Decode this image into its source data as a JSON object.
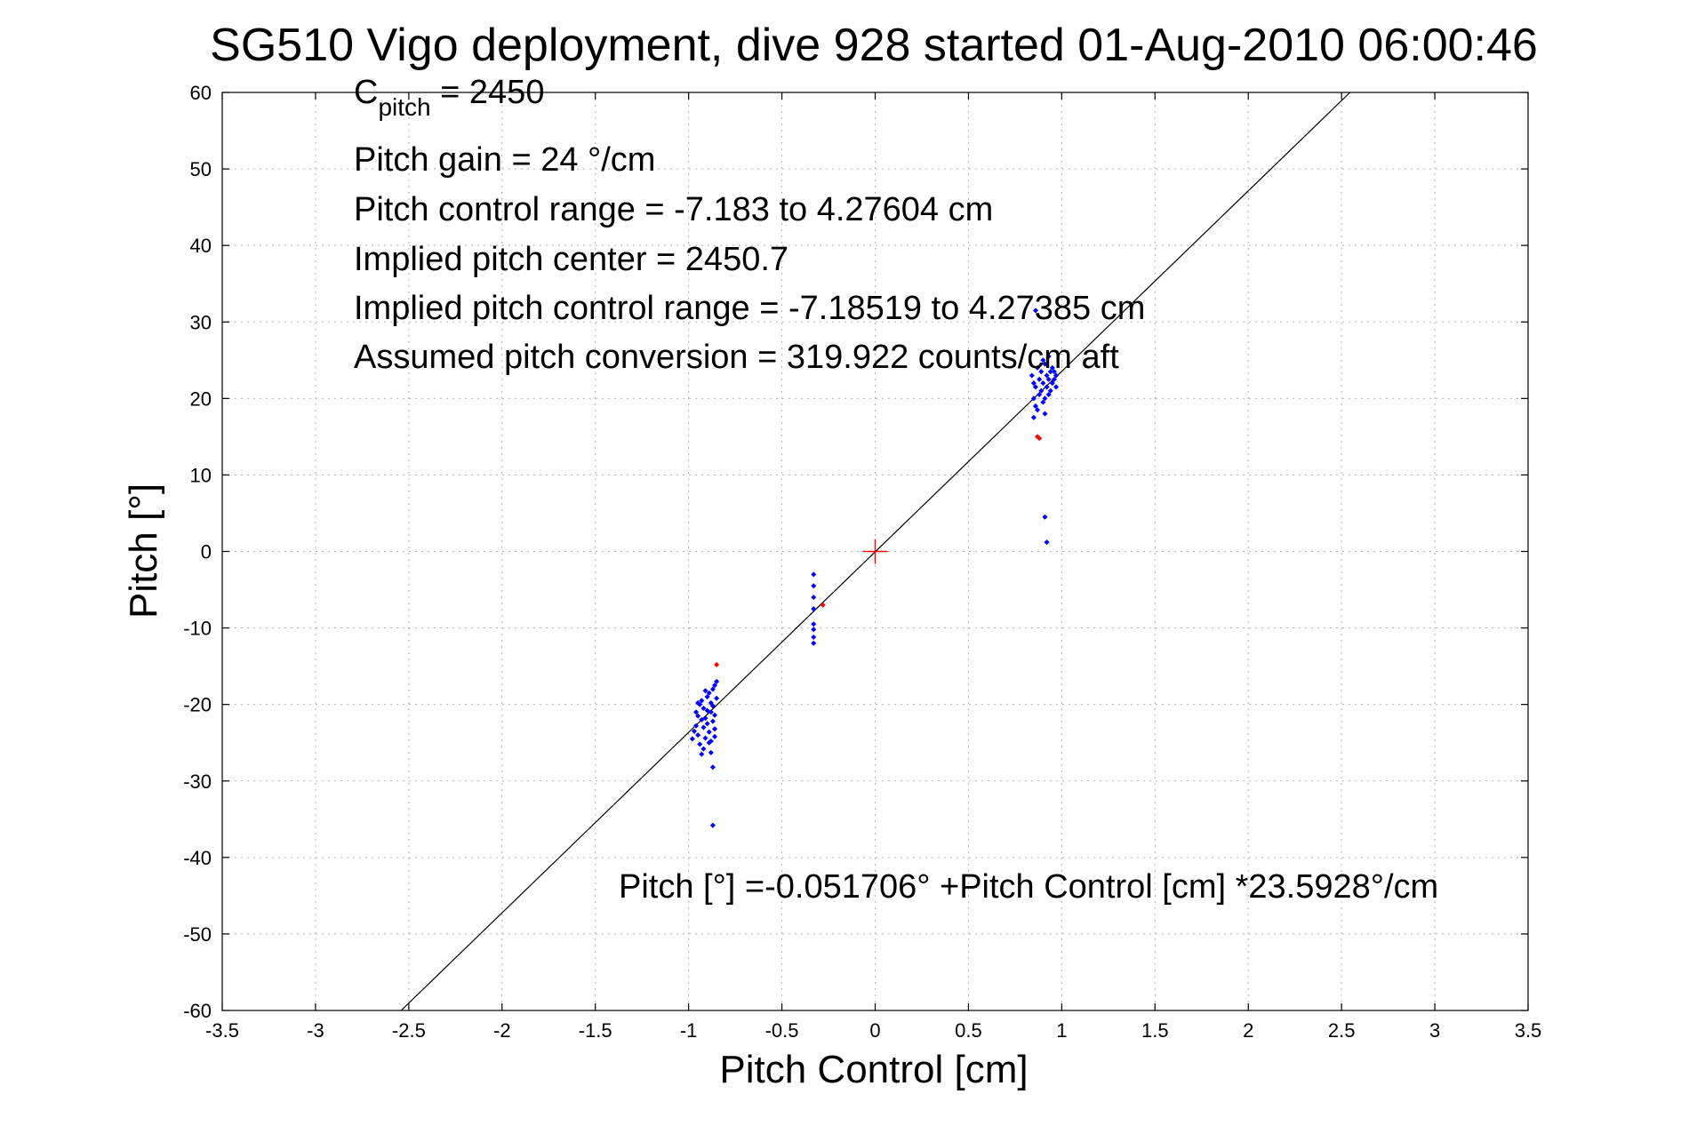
{
  "chart_data": {
    "type": "scatter",
    "title": "SG510 Vigo deployment, dive 928 started 01-Aug-2010 06:00:46",
    "xlabel": "Pitch Control [cm]",
    "ylabel": "Pitch [°]",
    "xlim": [
      -3.5,
      3.5
    ],
    "ylim": [
      -60,
      60
    ],
    "xticks": [
      -3.5,
      -3,
      -2.5,
      -2,
      -1.5,
      -1,
      -0.5,
      0,
      0.5,
      1,
      1.5,
      2,
      2.5,
      3,
      3.5
    ],
    "xtick_labels": [
      "-3.5",
      "-3",
      "-2.5",
      "-2",
      "-1.5",
      "-1",
      "-0.5",
      "0",
      "0.5",
      "1",
      "1.5",
      "2",
      "2.5",
      "3",
      "3.5"
    ],
    "yticks": [
      -60,
      -50,
      -40,
      -30,
      -20,
      -10,
      0,
      10,
      20,
      30,
      40,
      50,
      60
    ],
    "ytick_labels": [
      "-60",
      "-50",
      "-40",
      "-30",
      "-20",
      "-10",
      "0",
      "10",
      "20",
      "30",
      "40",
      "50",
      "60"
    ],
    "grid": true,
    "fit_line": {
      "intercept": -0.051706,
      "slope": 23.5928,
      "color": "#000000"
    },
    "center_marker": {
      "x": 0,
      "y": 0,
      "color": "#ff0000",
      "marker": "plus"
    },
    "series": [
      {
        "color": "#0000ff",
        "marker": "dot",
        "points": [
          [
            -0.98,
            -24.5
          ],
          [
            -0.97,
            -23.5
          ],
          [
            -0.96,
            -22.8
          ],
          [
            -0.95,
            -24.0
          ],
          [
            -0.95,
            -21.5
          ],
          [
            -0.94,
            -20.0
          ],
          [
            -0.94,
            -25.2
          ],
          [
            -0.93,
            -22.0
          ],
          [
            -0.93,
            -19.5
          ],
          [
            -0.92,
            -23.0
          ],
          [
            -0.92,
            -20.5
          ],
          [
            -0.92,
            -25.8
          ],
          [
            -0.91,
            -21.8
          ],
          [
            -0.91,
            -24.4
          ],
          [
            -0.9,
            -19.0
          ],
          [
            -0.9,
            -22.5
          ],
          [
            -0.9,
            -20.8
          ],
          [
            -0.89,
            -18.5
          ],
          [
            -0.89,
            -23.6
          ],
          [
            -0.89,
            -25.0
          ],
          [
            -0.88,
            -21.0
          ],
          [
            -0.88,
            -19.8
          ],
          [
            -0.88,
            -24.8
          ],
          [
            -0.88,
            -26.3
          ],
          [
            -0.87,
            -18.0
          ],
          [
            -0.87,
            -22.2
          ],
          [
            -0.87,
            -20.2
          ],
          [
            -0.87,
            -28.2
          ],
          [
            -0.87,
            -35.8
          ],
          [
            -0.86,
            -17.5
          ],
          [
            -0.86,
            -23.2
          ],
          [
            -0.86,
            -24.2
          ],
          [
            -0.86,
            -21.4
          ],
          [
            -0.85,
            -17.0
          ],
          [
            -0.85,
            -19.2
          ],
          [
            -0.93,
            -26.5
          ],
          [
            -0.95,
            -19.8
          ],
          [
            -0.91,
            -18.2
          ],
          [
            -0.96,
            -21.0
          ],
          [
            -0.33,
            -3.0
          ],
          [
            -0.33,
            -4.5
          ],
          [
            -0.33,
            -6.0
          ],
          [
            -0.33,
            -7.5
          ],
          [
            -0.33,
            -9.5
          ],
          [
            -0.33,
            -10.2
          ],
          [
            -0.33,
            -11.2
          ],
          [
            -0.33,
            -12.0
          ],
          [
            0.84,
            23.0
          ],
          [
            0.85,
            22.0
          ],
          [
            0.85,
            20.0
          ],
          [
            0.85,
            17.5
          ],
          [
            0.86,
            19.0
          ],
          [
            0.86,
            21.5
          ],
          [
            0.87,
            24.0
          ],
          [
            0.87,
            18.5
          ],
          [
            0.88,
            22.5
          ],
          [
            0.88,
            20.5
          ],
          [
            0.89,
            21.0
          ],
          [
            0.89,
            23.5
          ],
          [
            0.9,
            19.5
          ],
          [
            0.9,
            25.0
          ],
          [
            0.9,
            22.0
          ],
          [
            0.91,
            20.0
          ],
          [
            0.91,
            24.5
          ],
          [
            0.91,
            18.0
          ],
          [
            0.92,
            21.5
          ],
          [
            0.92,
            23.0
          ],
          [
            0.93,
            20.5
          ],
          [
            0.93,
            25.5
          ],
          [
            0.93,
            22.5
          ],
          [
            0.94,
            21.0
          ],
          [
            0.94,
            23.5
          ],
          [
            0.95,
            24.0
          ],
          [
            0.95,
            22.0
          ],
          [
            0.96,
            22.5
          ],
          [
            0.96,
            23.5
          ],
          [
            0.97,
            21.5
          ],
          [
            0.97,
            23.0
          ],
          [
            0.91,
            4.5
          ],
          [
            0.92,
            1.2
          ],
          [
            0.86,
            31.5
          ]
        ]
      },
      {
        "color": "#ff0000",
        "marker": "dot",
        "points": [
          [
            -0.85,
            -14.8
          ],
          [
            -0.28,
            -7.0
          ],
          [
            0.87,
            15.0
          ],
          [
            0.88,
            14.8
          ]
        ]
      }
    ],
    "annotations": {
      "cpitch_main": "C",
      "cpitch_sub": "pitch",
      "cpitch_value": " = 2450",
      "pitch_gain": "Pitch gain = 24 °/cm",
      "pitch_control_range": "Pitch control range = -7.183 to 4.27604 cm",
      "implied_pitch_center": "Implied pitch center = 2450.7",
      "implied_pitch_control_range": "Implied pitch control range = -7.18519 to 4.27385 cm",
      "assumed_pitch_conversion": "Assumed pitch conversion = 319.922 counts/cm aft",
      "fit_equation": "Pitch [°] =-0.051706° +Pitch Control [cm] *23.5928°/cm"
    }
  }
}
